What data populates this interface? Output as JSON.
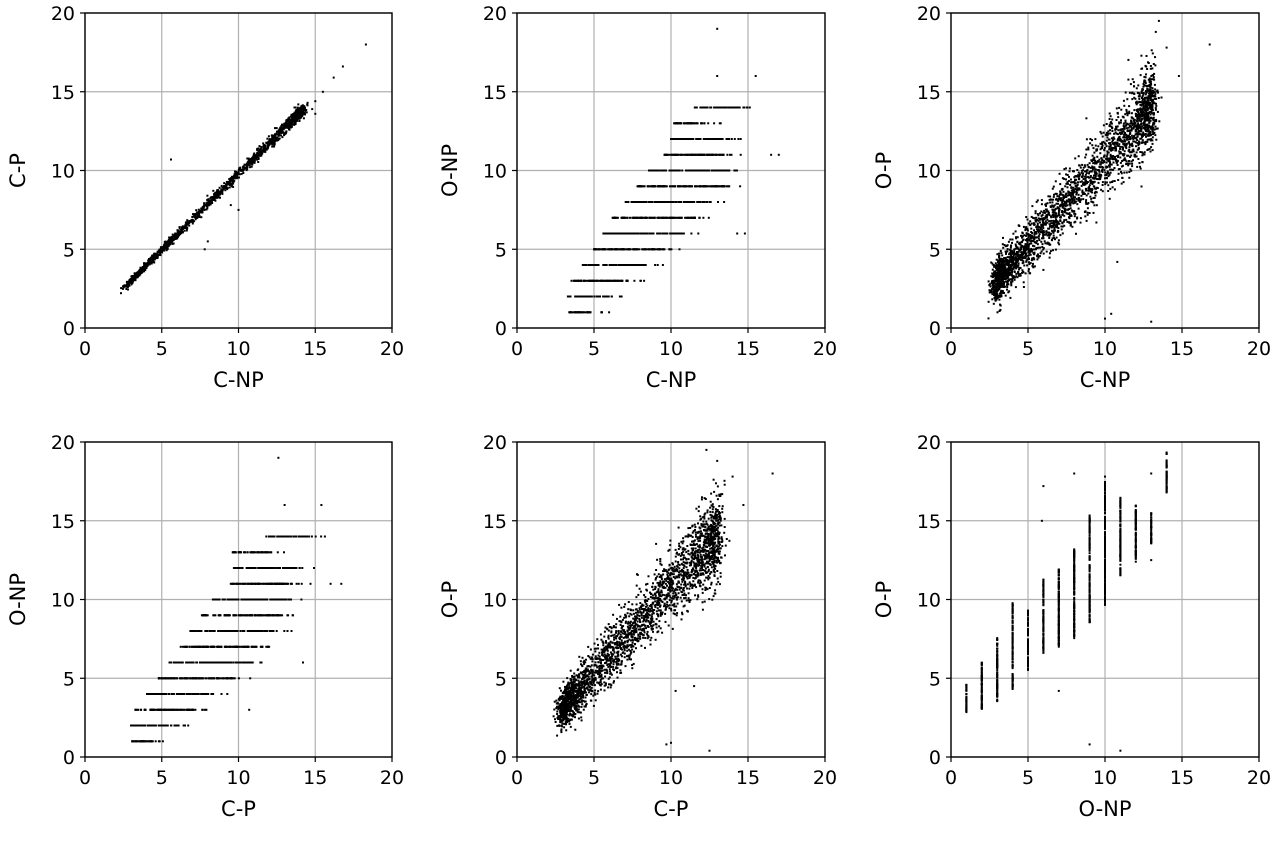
{
  "figure": {
    "background": "#ffffff",
    "point_color": "#000000",
    "grid_color": "#b0b0b0"
  },
  "chart_data": [
    {
      "type": "scatter",
      "xlabel": "C-NP",
      "ylabel": "C-P",
      "xlim": [
        0,
        20
      ],
      "ylim": [
        0,
        20
      ],
      "xticks": [
        0,
        5,
        10,
        15,
        20
      ],
      "yticks": [
        0,
        5,
        10,
        15,
        20
      ],
      "grid": true,
      "trend": {
        "x0": 3,
        "x1": 14,
        "slope": 0.97,
        "intercept": 0.1,
        "spread": 0.12,
        "n": 1600
      },
      "points": [
        [
          5.6,
          10.7
        ],
        [
          18.3,
          18.0
        ],
        [
          16.8,
          16.6
        ],
        [
          16.2,
          15.9
        ],
        [
          15.5,
          15.0
        ],
        [
          15.0,
          14.4
        ],
        [
          14.8,
          13.9
        ],
        [
          15.0,
          13.6
        ],
        [
          14.5,
          14.3
        ],
        [
          7.8,
          5.0
        ],
        [
          9.5,
          7.8
        ],
        [
          10.0,
          7.5
        ],
        [
          8.0,
          5.5
        ]
      ]
    },
    {
      "type": "scatter",
      "xlabel": "C-NP",
      "ylabel": "O-NP",
      "xlim": [
        0,
        20
      ],
      "ylim": [
        0,
        20
      ],
      "xticks": [
        0,
        5,
        10,
        15,
        20
      ],
      "yticks": [
        0,
        5,
        10,
        15,
        20
      ],
      "grid": true,
      "rows": [
        {
          "y": 1,
          "x": [
            3.3,
            4.8
          ]
        },
        {
          "y": 2,
          "x": [
            3.3,
            6.0
          ]
        },
        {
          "y": 3,
          "x": [
            3.5,
            7.2
          ]
        },
        {
          "y": 4,
          "x": [
            4.2,
            8.3
          ]
        },
        {
          "y": 5,
          "x": [
            5.0,
            9.6
          ]
        },
        {
          "y": 6,
          "x": [
            5.6,
            10.8
          ]
        },
        {
          "y": 7,
          "x": [
            6.2,
            11.6
          ]
        },
        {
          "y": 8,
          "x": [
            7.0,
            12.5
          ]
        },
        {
          "y": 9,
          "x": [
            7.8,
            13.5
          ]
        },
        {
          "y": 10,
          "x": [
            8.5,
            13.8
          ]
        },
        {
          "y": 11,
          "x": [
            9.5,
            13.5
          ]
        },
        {
          "y": 12,
          "x": [
            10.0,
            13.8
          ]
        },
        {
          "y": 13,
          "x": [
            10.2,
            12.2
          ]
        },
        {
          "y": 14,
          "x": [
            11.5,
            14.5
          ]
        }
      ],
      "points": [
        [
          13.0,
          19.0
        ],
        [
          13.0,
          16.0
        ],
        [
          15.5,
          16.0
        ],
        [
          16.5,
          11.0
        ],
        [
          17.0,
          11.0
        ],
        [
          14.8,
          6.0
        ],
        [
          14.3,
          6.0
        ],
        [
          14.7,
          14.0
        ]
      ]
    },
    {
      "type": "scatter",
      "xlabel": "C-NP",
      "ylabel": "O-P",
      "xlim": [
        0,
        20
      ],
      "ylim": [
        0,
        20
      ],
      "xticks": [
        0,
        5,
        10,
        15,
        20
      ],
      "yticks": [
        0,
        5,
        10,
        15,
        20
      ],
      "grid": true,
      "trend": {
        "x0": 3,
        "x1": 13,
        "slope": 1.1,
        "intercept": -0.3,
        "spread": 0.8,
        "n": 2600
      },
      "points": [
        [
          16.8,
          18.0
        ],
        [
          13.5,
          19.5
        ],
        [
          10.0,
          0.6
        ],
        [
          10.4,
          0.9
        ],
        [
          13.0,
          0.4
        ],
        [
          10.8,
          4.2
        ],
        [
          14.0,
          17.8
        ],
        [
          14.8,
          16.0
        ],
        [
          13.3,
          18.8
        ]
      ]
    },
    {
      "type": "scatter",
      "xlabel": "C-P",
      "ylabel": "O-NP",
      "xlim": [
        0,
        20
      ],
      "ylim": [
        0,
        20
      ],
      "xticks": [
        0,
        5,
        10,
        15,
        20
      ],
      "yticks": [
        0,
        5,
        10,
        15,
        20
      ],
      "grid": true,
      "rows": [
        {
          "y": 1,
          "x": [
            3.0,
            4.5
          ]
        },
        {
          "y": 2,
          "x": [
            3.0,
            6.0
          ]
        },
        {
          "y": 3,
          "x": [
            3.2,
            7.2
          ]
        },
        {
          "y": 4,
          "x": [
            4.0,
            8.3
          ]
        },
        {
          "y": 5,
          "x": [
            4.8,
            9.6
          ]
        },
        {
          "y": 6,
          "x": [
            5.5,
            10.8
          ]
        },
        {
          "y": 7,
          "x": [
            6.2,
            11.6
          ]
        },
        {
          "y": 8,
          "x": [
            6.8,
            12.3
          ]
        },
        {
          "y": 9,
          "x": [
            7.6,
            13.0
          ]
        },
        {
          "y": 10,
          "x": [
            8.3,
            13.2
          ]
        },
        {
          "y": 11,
          "x": [
            9.5,
            13.5
          ]
        },
        {
          "y": 12,
          "x": [
            9.7,
            13.8
          ]
        },
        {
          "y": 13,
          "x": [
            9.6,
            12.0
          ]
        },
        {
          "y": 14,
          "x": [
            11.8,
            14.5
          ]
        }
      ],
      "points": [
        [
          12.6,
          19.0
        ],
        [
          13.0,
          16.0
        ],
        [
          15.4,
          16.0
        ],
        [
          16.0,
          11.0
        ],
        [
          16.7,
          11.0
        ],
        [
          14.2,
          6.0
        ],
        [
          10.7,
          3.0
        ],
        [
          14.6,
          14.0
        ]
      ]
    },
    {
      "type": "scatter",
      "xlabel": "C-P",
      "ylabel": "O-P",
      "xlim": [
        0,
        20
      ],
      "ylim": [
        0,
        20
      ],
      "xticks": [
        0,
        5,
        10,
        15,
        20
      ],
      "yticks": [
        0,
        5,
        10,
        15,
        20
      ],
      "grid": true,
      "trend": {
        "x0": 3,
        "x1": 13,
        "slope": 1.1,
        "intercept": -0.2,
        "spread": 0.8,
        "n": 2600
      },
      "points": [
        [
          16.6,
          18.0
        ],
        [
          12.3,
          19.5
        ],
        [
          9.7,
          0.8
        ],
        [
          10.0,
          0.9
        ],
        [
          12.5,
          0.4
        ],
        [
          10.3,
          4.2
        ],
        [
          14.0,
          17.8
        ],
        [
          14.7,
          16.0
        ],
        [
          13.0,
          18.8
        ],
        [
          11.5,
          4.5
        ]
      ]
    },
    {
      "type": "scatter",
      "xlabel": "O-NP",
      "ylabel": "O-P",
      "xlim": [
        0,
        20
      ],
      "ylim": [
        0,
        20
      ],
      "xticks": [
        0,
        5,
        10,
        15,
        20
      ],
      "yticks": [
        0,
        5,
        10,
        15,
        20
      ],
      "grid": true,
      "columns": [
        {
          "x": 1,
          "y": [
            2.7,
            4.6
          ]
        },
        {
          "x": 2,
          "y": [
            3.0,
            6.0
          ]
        },
        {
          "x": 3,
          "y": [
            3.5,
            7.6
          ]
        },
        {
          "x": 4,
          "y": [
            4.3,
            9.8
          ]
        },
        {
          "x": 5,
          "y": [
            5.5,
            9.3
          ]
        },
        {
          "x": 6,
          "y": [
            6.5,
            11.3
          ]
        },
        {
          "x": 7,
          "y": [
            7.0,
            12.0
          ]
        },
        {
          "x": 8,
          "y": [
            7.5,
            13.3
          ]
        },
        {
          "x": 9,
          "y": [
            8.5,
            15.4
          ]
        },
        {
          "x": 10,
          "y": [
            9.5,
            17.5
          ]
        },
        {
          "x": 11,
          "y": [
            11.5,
            16.5
          ]
        },
        {
          "x": 12,
          "y": [
            12.5,
            16.0
          ]
        },
        {
          "x": 13,
          "y": [
            13.5,
            15.5
          ]
        },
        {
          "x": 14,
          "y": [
            16.8,
            19.5
          ]
        }
      ],
      "points": [
        [
          6.0,
          17.2
        ],
        [
          5.9,
          15.0
        ],
        [
          9.0,
          0.8
        ],
        [
          11.0,
          0.4
        ],
        [
          7.0,
          4.2
        ],
        [
          10.0,
          17.8
        ],
        [
          13.0,
          18.0
        ],
        [
          12.0,
          12.4
        ],
        [
          13.0,
          12.5
        ],
        [
          8.0,
          18.0
        ]
      ]
    }
  ]
}
